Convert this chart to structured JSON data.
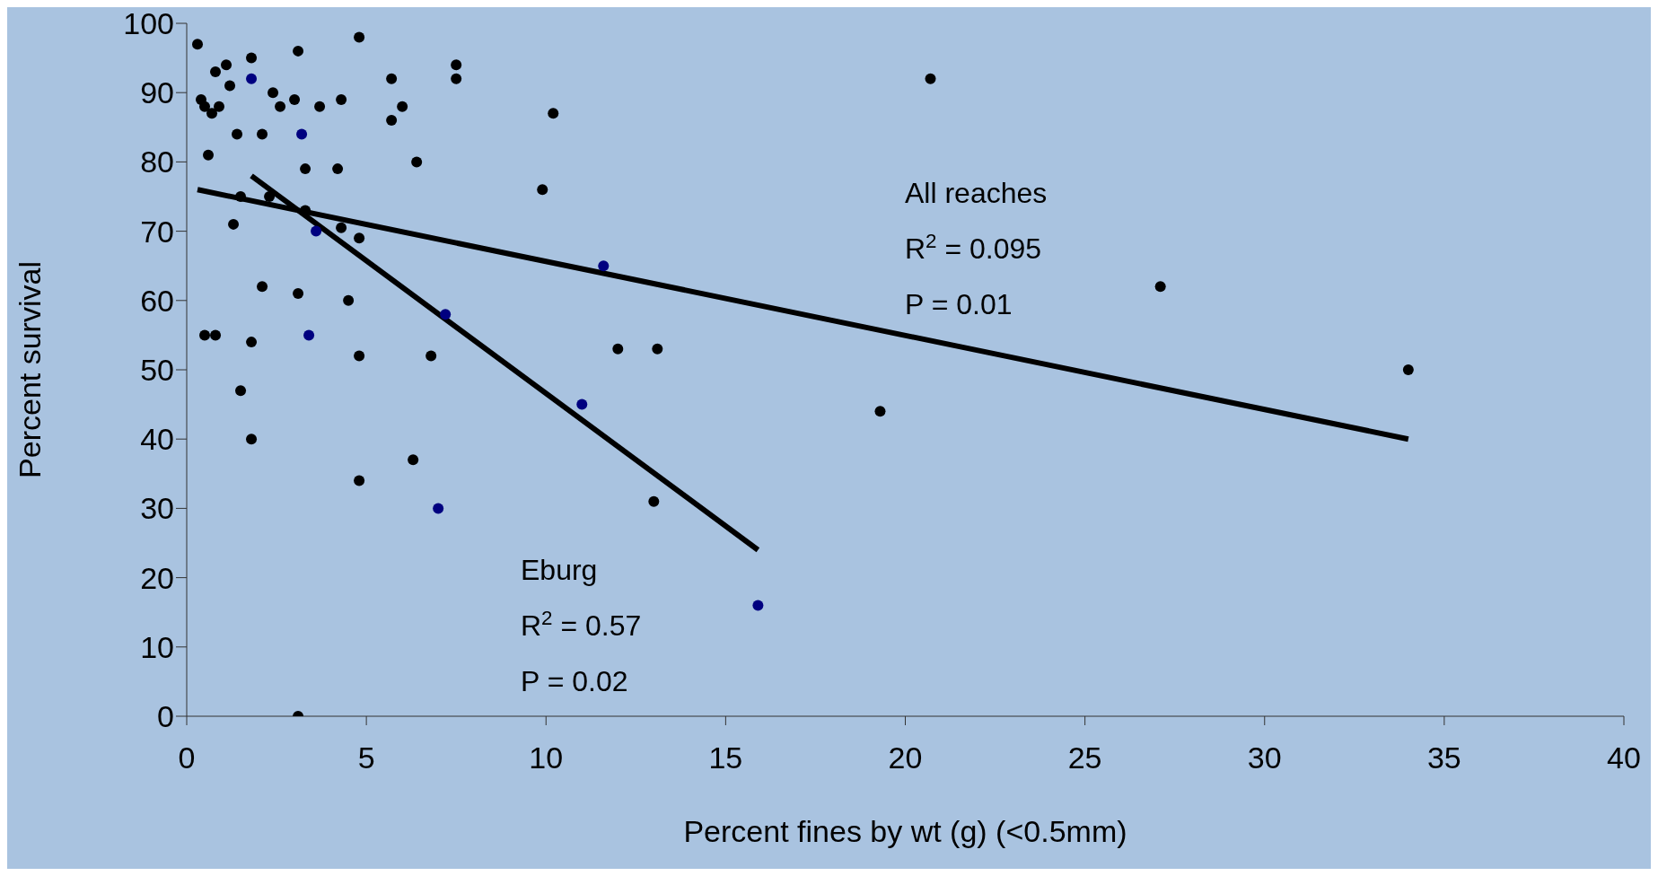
{
  "chart_data": {
    "type": "scatter",
    "xlabel": "Percent fines by wt (g) (<0.5mm)",
    "ylabel": "Percent survival",
    "xlim": [
      0,
      40
    ],
    "xticks": [
      0,
      5,
      10,
      15,
      20,
      25,
      30,
      35,
      40
    ],
    "ylim": [
      0,
      100
    ],
    "yticks": [
      0,
      10,
      20,
      30,
      40,
      50,
      60,
      70,
      80,
      90,
      100
    ],
    "grid": false,
    "legend": false,
    "marker": "circle",
    "series": [
      {
        "color": "#000000",
        "x": [
          0.3,
          0.4,
          0.5,
          0.7,
          0.8,
          0.6,
          0.9,
          1.1,
          1.2,
          1.4,
          1.3,
          1.5,
          1.8,
          2.1,
          2.1,
          2.3,
          2.4,
          2.6,
          3.0,
          3.1,
          3.1,
          3.3,
          3.3,
          3.7,
          4.2,
          4.3,
          4.3,
          4.5,
          4.8,
          4.8,
          4.8,
          4.8,
          5.7,
          5.7,
          6.0,
          6.4,
          6.3,
          6.8,
          7.5,
          7.5,
          9.9,
          10.2,
          12.0,
          13.0,
          13.1,
          19.3,
          20.7,
          27.1,
          34.0,
          0.5,
          0.8,
          1.5,
          1.8,
          1.8,
          3.1
        ],
        "values": [
          97,
          89,
          88,
          87,
          93,
          81,
          88,
          94,
          91,
          84,
          71,
          75,
          95,
          62,
          84,
          75,
          90,
          88,
          89,
          96,
          61,
          79,
          73,
          88,
          79,
          89,
          70.5,
          60,
          98,
          69,
          52,
          34,
          92,
          86,
          88,
          80,
          37,
          52,
          94,
          92,
          76,
          87,
          53,
          31,
          53,
          44,
          92,
          62,
          50,
          55,
          55,
          47,
          54,
          40,
          0
        ]
      },
      {
        "color": "#000080",
        "x": [
          1.8,
          3.2,
          3.6,
          3.4,
          7.2,
          7.0,
          11.0,
          11.6,
          15.9
        ],
        "values": [
          92,
          84,
          70,
          55,
          58,
          30,
          45,
          65,
          16
        ]
      },
      {
        "type": "line",
        "color": "#000000",
        "line_style": "solid",
        "marker": "none",
        "x": [
          0.3,
          34
        ],
        "values": [
          76,
          40
        ]
      },
      {
        "type": "line",
        "color": "#000000",
        "line_style": "solid",
        "marker": "none",
        "x": [
          1.8,
          15.9
        ],
        "values": [
          78,
          24
        ]
      }
    ],
    "annotations": [
      "All reaches",
      "R$^{2}$ = 0.095",
      "P = 0.01",
      "Eburg",
      "R$^{2}$ = 0.57",
      "P = 0.02"
    ]
  }
}
